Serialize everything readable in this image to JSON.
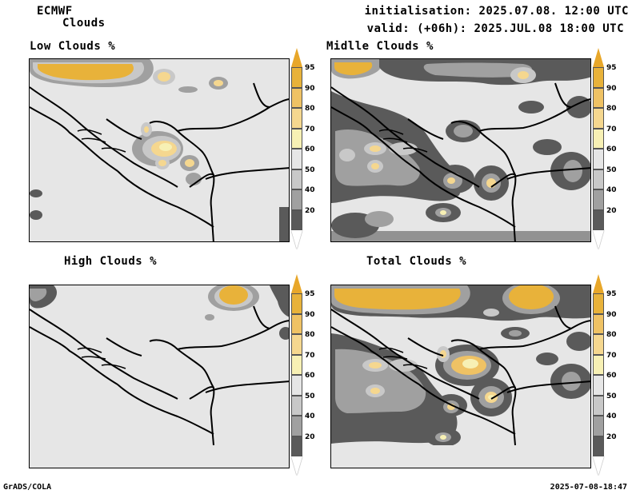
{
  "header": {
    "model": "ECMWF",
    "product": "Clouds",
    "init": "initialisation: 2025.07.08. 12:00 UTC",
    "valid": "valid: (+06h): 2025.JUL.08 18:00 UTC"
  },
  "panels": [
    {
      "id": "low",
      "title": "Low Clouds %"
    },
    {
      "id": "middle",
      "title": "Midlle Clouds %"
    },
    {
      "id": "high",
      "title": "High Clouds %"
    },
    {
      "id": "total",
      "title": "Total Clouds %"
    }
  ],
  "colorbar": {
    "levels": [
      "95",
      "90",
      "80",
      "70",
      "60",
      "50",
      "40",
      "20"
    ],
    "colors": [
      "#e8b23a",
      "#efc264",
      "#f5d78f",
      "#f7f0b4",
      "#e6e6e6",
      "#c8c8c8",
      "#a0a0a0",
      "#5a5a5a"
    ],
    "top_color": "#e8a72a",
    "bottom_color": "#ffffff"
  },
  "footer": {
    "left": "GrADS/COLA",
    "right": "2025-07-08-18:47"
  }
}
